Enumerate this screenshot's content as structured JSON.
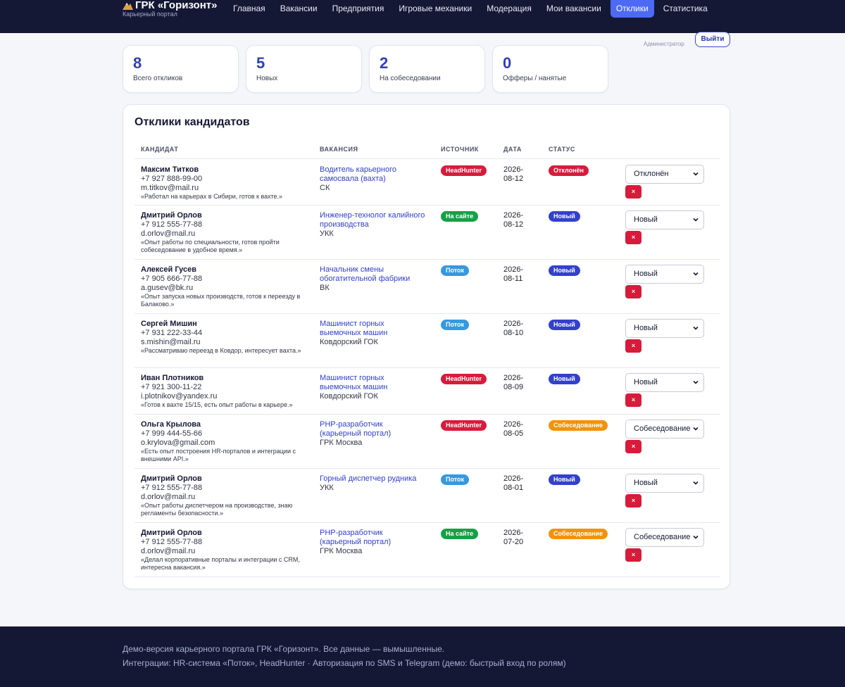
{
  "brand": {
    "title": "ГРК «Горизонт»",
    "subtitle": "Карьерный портал"
  },
  "nav": {
    "items": [
      {
        "label": "Главная"
      },
      {
        "label": "Вакансии"
      },
      {
        "label": "Предприятия"
      },
      {
        "label": "Игровые механики"
      },
      {
        "label": "Модерация"
      },
      {
        "label": "Мои вакансии"
      },
      {
        "label": "Отклики",
        "active": true
      },
      {
        "label": "Статистика"
      }
    ]
  },
  "user": {
    "role": "Администратор",
    "logout_label": "Выйти"
  },
  "stats": [
    {
      "value": "8",
      "label": "Всего откликов"
    },
    {
      "value": "5",
      "label": "Новых"
    },
    {
      "value": "2",
      "label": "На собеседовании"
    },
    {
      "value": "0",
      "label": "Офферы / нанятые"
    }
  ],
  "responses": {
    "title": "Отклики кандидатов",
    "columns": {
      "candidate": "КАНДИДАТ",
      "vacancy": "ВАКАНСИЯ",
      "source": "ИСТОЧНИК",
      "date": "ДАТА",
      "status": "СТАТУС"
    },
    "rows": [
      {
        "name": "Максим Титков",
        "phone": "+7 927 888-99-00",
        "email": "m.titkov@mail.ru",
        "quote": "«Работал на карьерах в Сибири, готов к вахте.»",
        "vacancy": "Водитель карьерного самосвала (вахта)",
        "company": "СК",
        "source": "HeadHunter",
        "date": "2026-08-12",
        "status": "Отклонён",
        "select_value": "Отклонён",
        "delete_label": "×"
      },
      {
        "name": "Дмитрий Орлов",
        "phone": "+7 912 555-77-88",
        "email": "d.orlov@mail.ru",
        "quote": "«Опыт работы по специальности, готов пройти собеседование в удобное время.»",
        "vacancy": "Инженер-технолог калийного производства",
        "company": "УКК",
        "source": "На сайте",
        "date": "2026-08-12",
        "status": "Новый",
        "select_value": "Новый",
        "delete_label": "×"
      },
      {
        "name": "Алексей Гусев",
        "phone": "+7 905 666-77-88",
        "email": "a.gusev@bk.ru",
        "quote": "«Опыт запуска новых производств, готов к переезду в Балаково.»",
        "vacancy": "Начальник смены обогатительной фабрики",
        "company": "ВК",
        "source": "Поток",
        "date": "2026-08-11",
        "status": "Новый",
        "select_value": "Новый",
        "delete_label": "×"
      },
      {
        "name": "Сергей Мишин",
        "phone": "+7 931 222-33-44",
        "email": "s.mishin@mail.ru",
        "quote": "«Рассматриваю переезд в Ковдор, интересует вахта.»",
        "vacancy": "Машинист горных выемочных машин",
        "company": "Ковдорский ГОК",
        "source": "Поток",
        "date": "2026-08-10",
        "status": "Новый",
        "select_value": "Новый",
        "delete_label": "×"
      },
      {
        "name": "Иван Плотников",
        "phone": "+7 921 300-11-22",
        "email": "i.plotnikov@yandex.ru",
        "quote": "«Готов к вахте 15/15, есть опыт работы в карьере.»",
        "vacancy": "Машинист горных выемочных машин",
        "company": "Ковдорский ГОК",
        "source": "HeadHunter",
        "date": "2026-08-09",
        "status": "Новый",
        "select_value": "Новый",
        "delete_label": "×"
      },
      {
        "name": "Ольга Крылова",
        "phone": "+7 999 444-55-66",
        "email": "o.krylova@gmail.com",
        "quote": "«Есть опыт построения HR-порталов и интеграции с внешними API.»",
        "vacancy": "PHP-разработчик (карьерный портал)",
        "company": "ГРК Москва",
        "source": "HeadHunter",
        "date": "2026-08-05",
        "status": "Собеседование",
        "select_value": "Собеседование",
        "delete_label": "×"
      },
      {
        "name": "Дмитрий Орлов",
        "phone": "+7 912 555-77-88",
        "email": "d.orlov@mail.ru",
        "quote": "«Опыт работы диспетчером на производстве, знаю регламенты безопасности.»",
        "vacancy": "Горный диспетчер рудника",
        "company": "УКК",
        "source": "Поток",
        "date": "2026-08-01",
        "status": "Новый",
        "select_value": "Новый",
        "delete_label": "×"
      },
      {
        "name": "Дмитрий Орлов",
        "phone": "+7 912 555-77-88",
        "email": "d.orlov@mail.ru",
        "quote": "«Делал корпоративные порталы и интеграции с CRM, интересна вакансия.»",
        "vacancy": "PHP-разработчик (карьерный портал)",
        "company": "ГРК Москва",
        "source": "На сайте",
        "date": "2026-07-20",
        "status": "Собеседование",
        "select_value": "Собеседование",
        "delete_label": "×"
      }
    ]
  },
  "footer": {
    "line1": "Демо-версия карьерного портала ГРК «Горизонт». Все данные — вымышленные.",
    "line2": "Интеграции: HR-система «Поток», HeadHunter · Авторизация по SMS и Telegram (демо: быстрый вход по ролям)"
  },
  "colors": {
    "topbar": "#151834",
    "accent": "#4c6af4",
    "headhunter": "#d81b3b",
    "site": "#17a046",
    "flow": "#3698e0",
    "status_new": "#3340cc",
    "status_rejected": "#d81b3b",
    "status_interview": "#f0930c"
  }
}
